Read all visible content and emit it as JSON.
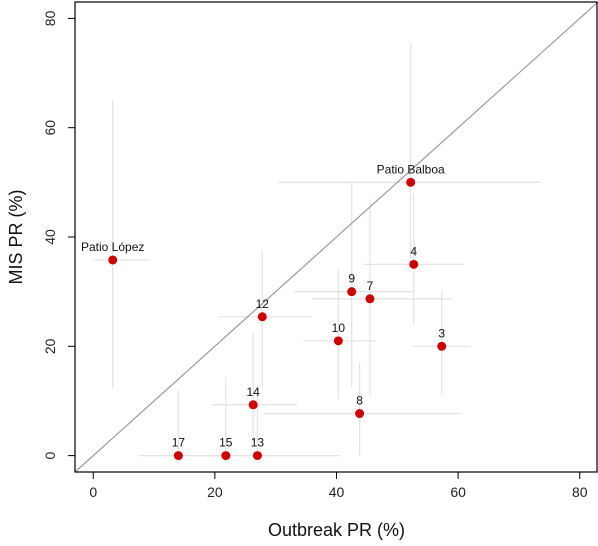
{
  "chart_data": {
    "type": "scatter",
    "xlabel": "Outbreak PR (%)",
    "ylabel": "MIS PR (%)",
    "xlim": [
      -3,
      83
    ],
    "ylim": [
      -3,
      83
    ],
    "xticks": [
      0,
      20,
      40,
      60,
      80
    ],
    "yticks": [
      0,
      20,
      40,
      60,
      80
    ],
    "reference_line": "y = x",
    "grid": false,
    "colors": {
      "point": "#cc0000",
      "errorbar": "#e3e3e3",
      "diagonal": "#9a9a9a",
      "frame": "#000000"
    },
    "points": [
      {
        "label": "Patio Balboa",
        "x": 52.2,
        "y": 50.0,
        "x_low": 30.5,
        "x_high": 73.5,
        "y_low": 36.0,
        "y_high": 75.5
      },
      {
        "label": "Patio López",
        "x": 3.2,
        "y": 35.8,
        "x_low": 0.0,
        "x_high": 9.3,
        "y_low": 12.5,
        "y_high": 65.0
      },
      {
        "label": "4",
        "x": 52.7,
        "y": 35.0,
        "x_low": 44.5,
        "x_high": 61.0,
        "y_low": 24.0,
        "y_high": 48.0
      },
      {
        "label": "9",
        "x": 42.5,
        "y": 30.0,
        "x_low": 33.0,
        "x_high": 52.5,
        "y_low": 12.5,
        "y_high": 50.0
      },
      {
        "label": "7",
        "x": 45.5,
        "y": 28.7,
        "x_low": 36.0,
        "x_high": 59.0,
        "y_low": 11.0,
        "y_high": 47.0
      },
      {
        "label": "12",
        "x": 27.8,
        "y": 25.4,
        "x_low": 20.5,
        "x_high": 36.0,
        "y_low": 12.5,
        "y_high": 37.5
      },
      {
        "label": "10",
        "x": 40.3,
        "y": 21.0,
        "x_low": 34.5,
        "x_high": 46.5,
        "y_low": 10.5,
        "y_high": 34.0
      },
      {
        "label": "3",
        "x": 57.3,
        "y": 20.0,
        "x_low": 52.5,
        "x_high": 62.0,
        "y_low": 11.0,
        "y_high": 30.0
      },
      {
        "label": "14",
        "x": 26.3,
        "y": 9.3,
        "x_low": 19.5,
        "x_high": 33.5,
        "y_low": 2.5,
        "y_high": 22.5
      },
      {
        "label": "8",
        "x": 43.8,
        "y": 7.7,
        "x_low": 28.0,
        "x_high": 60.5,
        "y_low": 0.0,
        "y_high": 17.0
      },
      {
        "label": "17",
        "x": 14.0,
        "y": 0.0,
        "x_low": 7.5,
        "x_high": 21.5,
        "y_low": 0.0,
        "y_high": 12.0
      },
      {
        "label": "15",
        "x": 21.8,
        "y": 0.0,
        "x_low": 15.5,
        "x_high": 28.0,
        "y_low": 0.0,
        "y_high": 14.5
      },
      {
        "label": "13",
        "x": 27.0,
        "y": 0.0,
        "x_low": 13.0,
        "x_high": 40.5,
        "y_low": 0.0,
        "y_high": 12.5
      }
    ]
  }
}
